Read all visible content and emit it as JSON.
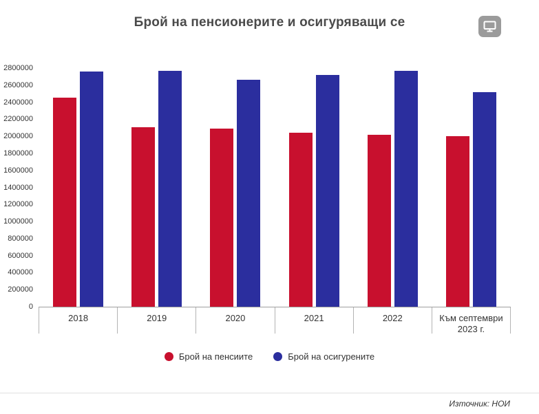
{
  "header": {
    "title": "Брой на пенсионерите и осигуряващи се",
    "menu_icon": "monitor-icon",
    "menu_button_color": "#9b9b9b"
  },
  "footer": {
    "source": "Източник: НОИ"
  },
  "chart_data": {
    "type": "bar",
    "title": "Брой на пенсионерите и осигуряващи се",
    "categories": [
      "2018",
      "2019",
      "2020",
      "2021",
      "2022",
      "Към септември\n2023 г."
    ],
    "series": [
      {
        "name": "Брой на пенсиите",
        "color": "#c8102e",
        "values": [
          2450000,
          2110000,
          2090000,
          2040000,
          2020000,
          2000000
        ]
      },
      {
        "name": "Брой на осигурените",
        "color": "#2b2e9e",
        "values": [
          2760000,
          2770000,
          2660000,
          2720000,
          2770000,
          2520000
        ]
      }
    ],
    "xlabel": "",
    "ylabel": "",
    "ylim": [
      0,
      2800000
    ],
    "y_tick_step": 200000,
    "y_ticks": [
      "0",
      "200000",
      "400000",
      "600000",
      "800000",
      "1000000",
      "1200000",
      "1400000",
      "1600000",
      "1800000",
      "2000000",
      "2200000",
      "2400000",
      "2600000",
      "2800000"
    ],
    "grid": false,
    "legend_position": "bottom"
  }
}
